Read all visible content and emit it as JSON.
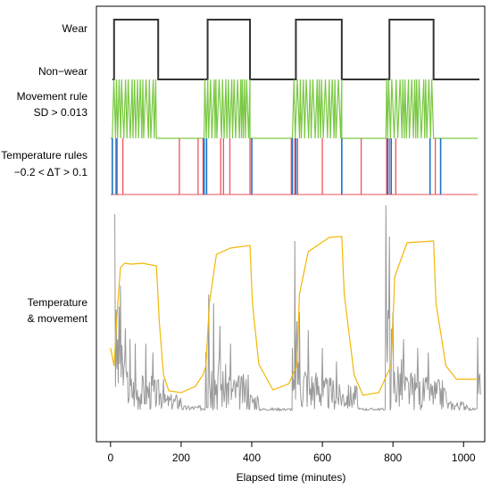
{
  "chart_data": {
    "type": "line",
    "xlabel": "Elapsed time (minutes)",
    "xlim": [
      -40,
      1060
    ],
    "xticks": [
      0,
      200,
      400,
      600,
      800,
      1000
    ],
    "tick_labels": [
      "0",
      "200",
      "400",
      "600",
      "800",
      "1000"
    ],
    "row_labels": {
      "wear": "Wear",
      "nonwear": "Non−wear",
      "movement_1": "Movement rule",
      "movement_2": "SD > 0.013",
      "temperature_1": "Temperature rules",
      "temperature_2": "−0.2 < ΔT > 0.1",
      "combined_1": "Temperature",
      "combined_2": "& movement"
    },
    "wear_periods": [
      [
        10,
        135
      ],
      [
        275,
        395
      ],
      [
        525,
        655
      ],
      [
        790,
        915
      ]
    ],
    "movement_active_bursts": [
      [
        5,
        130
      ],
      [
        265,
        395
      ],
      [
        515,
        655
      ],
      [
        780,
        915
      ]
    ],
    "temperature_events": {
      "red": [
        15,
        35,
        195,
        248,
        262,
        312,
        320,
        338,
        395,
        512,
        522,
        530,
        600,
        710,
        782,
        790,
        808,
        920
      ],
      "blue": [
        5,
        18,
        265,
        272,
        400,
        515,
        525,
        655,
        785,
        795,
        905,
        935
      ]
    },
    "temperature_series": {
      "color": "#f2b705",
      "points": [
        [
          0,
          390
        ],
        [
          10,
          410
        ],
        [
          18,
          355
        ],
        [
          28,
          300
        ],
        [
          40,
          295
        ],
        [
          60,
          296
        ],
        [
          90,
          295
        ],
        [
          130,
          298
        ],
        [
          138,
          360
        ],
        [
          150,
          420
        ],
        [
          165,
          438
        ],
        [
          200,
          440
        ],
        [
          240,
          433
        ],
        [
          262,
          420
        ],
        [
          270,
          410
        ],
        [
          280,
          340
        ],
        [
          300,
          285
        ],
        [
          340,
          278
        ],
        [
          395,
          275
        ],
        [
          402,
          340
        ],
        [
          420,
          408
        ],
        [
          460,
          437
        ],
        [
          505,
          430
        ],
        [
          518,
          418
        ],
        [
          528,
          410
        ],
        [
          535,
          330
        ],
        [
          560,
          282
        ],
        [
          620,
          266
        ],
        [
          655,
          265
        ],
        [
          662,
          330
        ],
        [
          690,
          420
        ],
        [
          715,
          443
        ],
        [
          760,
          440
        ],
        [
          785,
          418
        ],
        [
          795,
          410
        ],
        [
          805,
          310
        ],
        [
          840,
          272
        ],
        [
          915,
          270
        ],
        [
          922,
          340
        ],
        [
          950,
          410
        ],
        [
          980,
          425
        ],
        [
          1040,
          425
        ]
      ]
    },
    "movement_series": {
      "color": "#999999",
      "spikes": [
        [
          12,
          240
        ],
        [
          28,
          320
        ],
        [
          42,
          368
        ],
        [
          55,
          380
        ],
        [
          70,
          385
        ],
        [
          100,
          385
        ],
        [
          120,
          395
        ],
        [
          150,
          425
        ],
        [
          200,
          450
        ],
        [
          270,
          395
        ],
        [
          278,
          330
        ],
        [
          292,
          340
        ],
        [
          310,
          365
        ],
        [
          340,
          385
        ],
        [
          390,
          420
        ],
        [
          420,
          455
        ],
        [
          515,
          390
        ],
        [
          522,
          270
        ],
        [
          535,
          350
        ],
        [
          560,
          370
        ],
        [
          600,
          390
        ],
        [
          640,
          405
        ],
        [
          700,
          455
        ],
        [
          780,
          230
        ],
        [
          790,
          265
        ],
        [
          800,
          350
        ],
        [
          830,
          380
        ],
        [
          870,
          390
        ],
        [
          900,
          395
        ],
        [
          950,
          440
        ],
        [
          1010,
          455
        ],
        [
          1040,
          378
        ]
      ]
    }
  }
}
